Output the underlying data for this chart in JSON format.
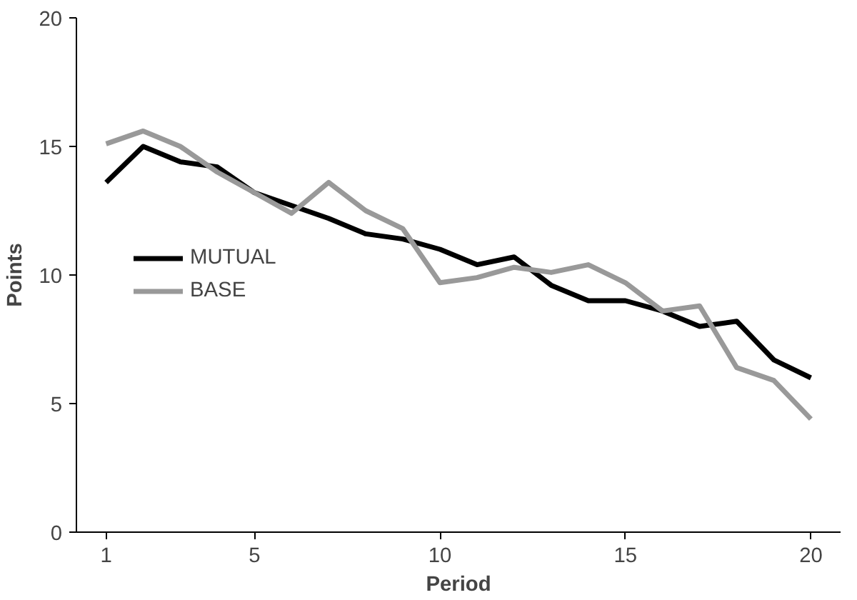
{
  "chart_data": {
    "type": "line",
    "xlabel": "Period",
    "ylabel": "Points",
    "x": [
      1,
      2,
      3,
      4,
      5,
      6,
      7,
      8,
      9,
      10,
      11,
      12,
      13,
      14,
      15,
      16,
      17,
      18,
      19,
      20
    ],
    "series": [
      {
        "name": "MUTUAL",
        "color": "#000000",
        "values": [
          13.6,
          15.0,
          14.4,
          14.2,
          13.2,
          12.7,
          12.2,
          11.6,
          11.4,
          11.0,
          10.4,
          10.7,
          9.6,
          9.0,
          9.0,
          8.6,
          8.0,
          8.2,
          6.7,
          6.0
        ]
      },
      {
        "name": "BASE",
        "color": "#999999",
        "values": [
          15.1,
          15.6,
          15.0,
          14.0,
          13.2,
          12.4,
          13.6,
          12.5,
          11.8,
          9.7,
          9.9,
          10.3,
          10.1,
          10.4,
          9.7,
          8.6,
          8.8,
          6.4,
          5.9,
          4.4
        ]
      }
    ],
    "xlim": [
      0.2,
      20.8
    ],
    "ylim": [
      0,
      20
    ],
    "xticks": [
      1,
      5,
      10,
      15,
      20
    ],
    "yticks": [
      0,
      5,
      10,
      15,
      20
    ],
    "grid": false,
    "legend": "left",
    "marker": "none",
    "line_style": "solid"
  }
}
